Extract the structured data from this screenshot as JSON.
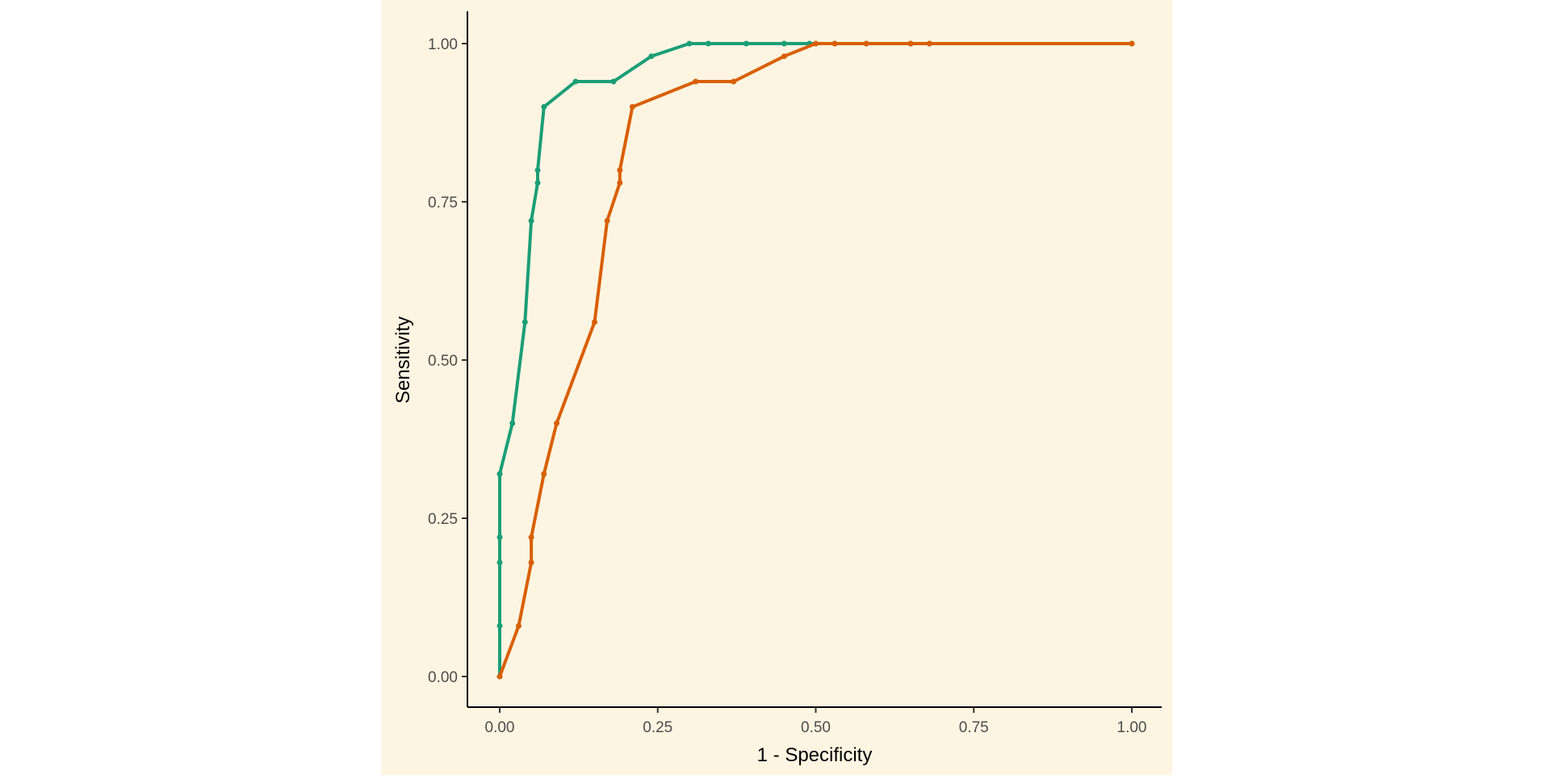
{
  "chart_data": {
    "type": "line",
    "title": "",
    "xlabel": "1 - Specificity",
    "ylabel": "Sensitivity",
    "xlim": [
      0,
      1
    ],
    "ylim": [
      0,
      1
    ],
    "x_ticks": [
      "0.00",
      "0.25",
      "0.50",
      "0.75",
      "1.00"
    ],
    "y_ticks": [
      "0.00",
      "0.25",
      "0.50",
      "0.75",
      "1.00"
    ],
    "grid": false,
    "legend": "none",
    "colors": {
      "panel_background": "#fdf5e2",
      "axis": "#000000"
    },
    "series": [
      {
        "color": "#1b9e77",
        "points": [
          [
            0.0,
            0.0
          ],
          [
            0.0,
            0.08
          ],
          [
            0.0,
            0.18
          ],
          [
            0.0,
            0.22
          ],
          [
            0.0,
            0.32
          ],
          [
            0.02,
            0.4
          ],
          [
            0.04,
            0.56
          ],
          [
            0.05,
            0.72
          ],
          [
            0.06,
            0.78
          ],
          [
            0.06,
            0.8
          ],
          [
            0.07,
            0.9
          ],
          [
            0.12,
            0.94
          ],
          [
            0.18,
            0.94
          ],
          [
            0.24,
            0.98
          ],
          [
            0.3,
            1.0
          ],
          [
            0.33,
            1.0
          ],
          [
            0.39,
            1.0
          ],
          [
            0.45,
            1.0
          ],
          [
            0.49,
            1.0
          ],
          [
            0.53,
            1.0
          ],
          [
            0.58,
            1.0
          ],
          [
            0.65,
            1.0
          ],
          [
            0.68,
            1.0
          ],
          [
            1.0,
            1.0
          ]
        ]
      },
      {
        "color": "#d95f02",
        "points": [
          [
            0.0,
            0.0
          ],
          [
            0.03,
            0.08
          ],
          [
            0.05,
            0.18
          ],
          [
            0.05,
            0.22
          ],
          [
            0.07,
            0.32
          ],
          [
            0.09,
            0.4
          ],
          [
            0.15,
            0.56
          ],
          [
            0.17,
            0.72
          ],
          [
            0.19,
            0.78
          ],
          [
            0.19,
            0.8
          ],
          [
            0.21,
            0.9
          ],
          [
            0.31,
            0.94
          ],
          [
            0.37,
            0.94
          ],
          [
            0.45,
            0.98
          ],
          [
            0.5,
            1.0
          ],
          [
            0.53,
            1.0
          ],
          [
            0.58,
            1.0
          ],
          [
            0.65,
            1.0
          ],
          [
            0.68,
            1.0
          ],
          [
            1.0,
            1.0
          ]
        ]
      }
    ]
  }
}
